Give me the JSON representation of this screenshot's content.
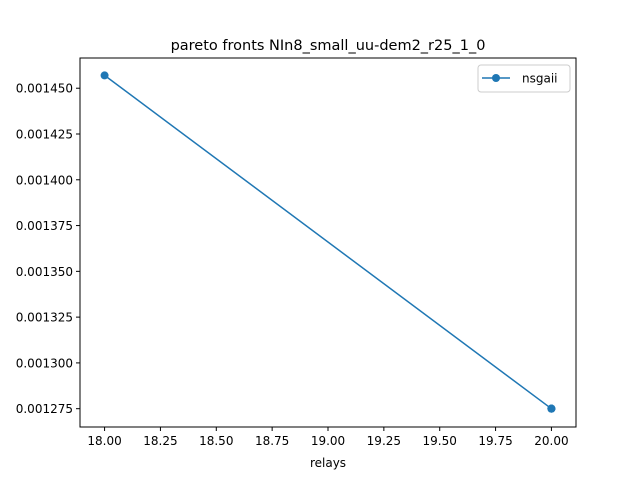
{
  "chart_data": {
    "type": "line",
    "title": "pareto fronts NIn8_small_uu-dem2_r25_1_0",
    "xlabel": "relays",
    "ylabel": "",
    "xlim": [
      17.89,
      20.11
    ],
    "ylim": [
      0.001265,
      0.0014665
    ],
    "xticks": [
      "18.00",
      "18.25",
      "18.50",
      "18.75",
      "19.00",
      "19.25",
      "19.50",
      "19.75",
      "20.00"
    ],
    "yticks": [
      "0.001275",
      "0.001300",
      "0.001325",
      "0.001350",
      "0.001375",
      "0.001400",
      "0.001425",
      "0.001450"
    ],
    "grid": false,
    "legend_position": "upper right",
    "series": [
      {
        "name": "nsgaii",
        "color": "#1f77b4",
        "marker": "circle",
        "x": [
          18,
          20,
          20,
          20,
          20
        ],
        "y": [
          0.001457,
          0.001275,
          0.001275,
          0.001275,
          0.001275
        ]
      }
    ]
  }
}
